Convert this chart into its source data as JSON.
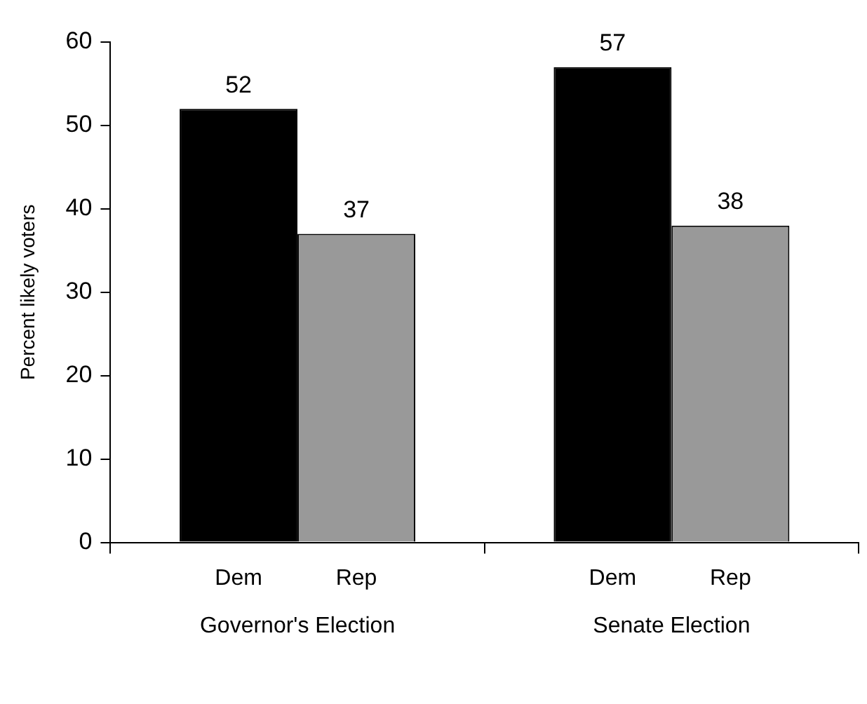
{
  "chart_data": {
    "type": "bar",
    "ylabel": "Percent likely voters",
    "categories": [
      "Governor's Election",
      "Senate Election"
    ],
    "series": [
      {
        "name": "Dem",
        "color": "#000000",
        "values": [
          52,
          57
        ]
      },
      {
        "name": "Rep",
        "color": "#999999",
        "values": [
          37,
          38
        ]
      }
    ],
    "ylim": [
      0,
      60
    ],
    "yticks": [
      0,
      10,
      20,
      30,
      40,
      50,
      60
    ],
    "grid": false,
    "legend": false,
    "data_labels": true
  }
}
